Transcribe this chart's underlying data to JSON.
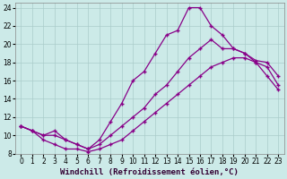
{
  "xlabel": "Windchill (Refroidissement éolien,°C)",
  "ylabel": "",
  "bg_color": "#cceae8",
  "grid_color": "#aaccca",
  "line_color": "#880088",
  "marker": "+",
  "xlim": [
    -0.5,
    23.5
  ],
  "ylim": [
    8,
    24.5
  ],
  "xticks": [
    0,
    1,
    2,
    3,
    4,
    5,
    6,
    7,
    8,
    9,
    10,
    11,
    12,
    13,
    14,
    15,
    16,
    17,
    18,
    19,
    20,
    21,
    22,
    23
  ],
  "yticks": [
    8,
    10,
    12,
    14,
    16,
    18,
    20,
    22,
    24
  ],
  "line_upper_x": [
    0,
    1,
    2,
    3,
    4,
    5,
    6,
    7,
    8,
    9,
    10,
    11,
    12,
    13,
    14,
    15,
    16,
    17,
    18,
    19,
    20,
    21,
    22,
    23
  ],
  "line_upper_y": [
    11.0,
    10.5,
    10.0,
    10.5,
    9.5,
    9.0,
    8.5,
    9.5,
    11.5,
    13.5,
    16.0,
    17.0,
    19.0,
    21.0,
    21.5,
    24.0,
    24.0,
    22.0,
    21.0,
    19.5,
    19.0,
    18.0,
    16.5,
    15.0
  ],
  "line_mid_x": [
    0,
    1,
    2,
    3,
    4,
    5,
    6,
    7,
    8,
    9,
    10,
    11,
    12,
    13,
    14,
    15,
    16,
    17,
    18,
    19,
    20,
    21,
    22,
    23
  ],
  "line_mid_y": [
    11.0,
    10.5,
    10.0,
    10.0,
    9.5,
    9.0,
    8.5,
    9.0,
    10.0,
    11.0,
    12.0,
    13.0,
    14.5,
    15.5,
    17.0,
    18.5,
    19.5,
    20.5,
    19.5,
    19.5,
    19.0,
    18.2,
    18.0,
    16.5
  ],
  "line_lower_x": [
    0,
    1,
    2,
    3,
    4,
    5,
    6,
    7,
    8,
    9,
    10,
    11,
    12,
    13,
    14,
    15,
    16,
    17,
    18,
    19,
    20,
    21,
    22,
    23
  ],
  "line_lower_y": [
    11.0,
    10.5,
    9.5,
    9.0,
    8.5,
    8.5,
    8.2,
    8.5,
    9.0,
    9.5,
    10.5,
    11.5,
    12.5,
    13.5,
    14.5,
    15.5,
    16.5,
    17.5,
    18.0,
    18.5,
    18.5,
    18.0,
    17.5,
    15.5
  ],
  "label_fontsize": 6.5,
  "tick_fontsize": 5.5
}
